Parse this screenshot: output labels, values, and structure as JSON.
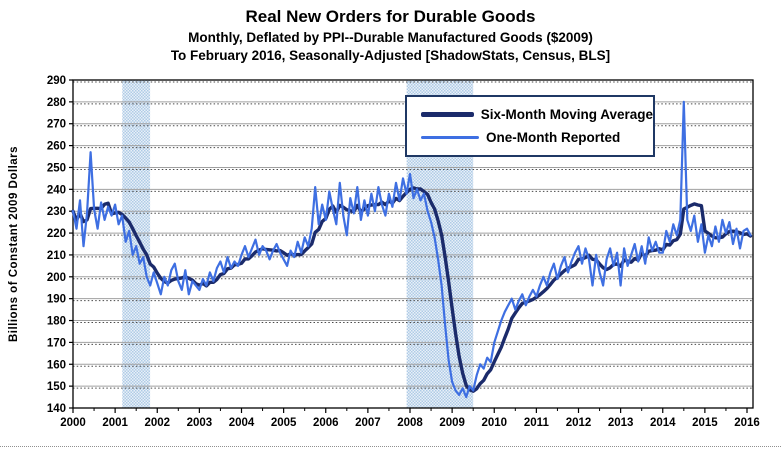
{
  "header": {
    "title": "Real New Orders for Durable Goods",
    "subtitle1": "Monthly, Deflated by PPI--Durable Manufactured Goods ($2009)",
    "subtitle2": "To February 2016, Seasonally-Adjusted [ShadowStats, Census, BLS]"
  },
  "chart_data": {
    "type": "line",
    "title": "Real New Orders for Durable Goods",
    "xlabel": "",
    "ylabel": "Billions  of  Constant  2009  Dollars",
    "ylim": [
      140,
      290
    ],
    "ytick_step": 10,
    "x_ticks": [
      2000,
      2001,
      2002,
      2003,
      2004,
      2005,
      2006,
      2007,
      2008,
      2009,
      2010,
      2011,
      2012,
      2013,
      2014,
      2015,
      2016
    ],
    "x_range_years": [
      2000.0,
      2016.17
    ],
    "grid": "horizontal major gridlines (gray solid with dotted companion)",
    "legend_position": "inside-top-center",
    "recession_bands": [
      {
        "start": 2001.17,
        "end": 2001.83
      },
      {
        "start": 2007.92,
        "end": 2009.5
      }
    ],
    "series": [
      {
        "name": "Six-Month Moving Average",
        "color": "#1B2B6B",
        "derived_from": "trailing 6-month mean of One-Month Reported series"
      },
      {
        "name": "One-Month Reported",
        "color": "#3E6FE2",
        "start": "2000-01",
        "end": "2016-02",
        "monthly_values": [
          230,
          222,
          235,
          214,
          229,
          257,
          231,
          222,
          234,
          226,
          232,
          228,
          233,
          224,
          228,
          216,
          221,
          210,
          214,
          206,
          209,
          200,
          196,
          202,
          197,
          192,
          200,
          196,
          203,
          206,
          198,
          194,
          203,
          192,
          198,
          196,
          194,
          199,
          196,
          202,
          198,
          204,
          207,
          202,
          209,
          204,
          207,
          205,
          210,
          214,
          209,
          213,
          217,
          210,
          214,
          212,
          208,
          212,
          215,
          211,
          208,
          205,
          212,
          209,
          216,
          211,
          218,
          214,
          222,
          241,
          224,
          233,
          226,
          239,
          231,
          224,
          243,
          228,
          219,
          236,
          229,
          241,
          226,
          235,
          228,
          238,
          230,
          241,
          233,
          228,
          238,
          232,
          243,
          235,
          245,
          238,
          247,
          236,
          240,
          235,
          238,
          230,
          225,
          218,
          208,
          196,
          178,
          162,
          152,
          148,
          146,
          149,
          145,
          150,
          148,
          155,
          160,
          158,
          163,
          161,
          170,
          175,
          180,
          184,
          187,
          190,
          185,
          189,
          192,
          187,
          191,
          194,
          191,
          196,
          200,
          196,
          202,
          206,
          199,
          205,
          209,
          202,
          207,
          211,
          214,
          206,
          213,
          208,
          196,
          210,
          202,
          196,
          208,
          213,
          205,
          211,
          196,
          213,
          205,
          210,
          215,
          207,
          214,
          206,
          218,
          212,
          216,
          211,
          211,
          221,
          216,
          224,
          219,
          226,
          280,
          226,
          221,
          228,
          216,
          224,
          211,
          219,
          214,
          223,
          216,
          226,
          220,
          225,
          215,
          222,
          213,
          221,
          222,
          219
        ]
      }
    ],
    "colors": {
      "one_month": "#3E6FE2",
      "six_month": "#1B2B6B",
      "recession_band": "#AFCBE6",
      "recession_band_light": "#E9F0F8",
      "grid": "#A0A0A0",
      "grid_dots": "#4A4A4A",
      "axis": "#000000",
      "legend_border": "#1F3864",
      "text": "#000000"
    }
  }
}
